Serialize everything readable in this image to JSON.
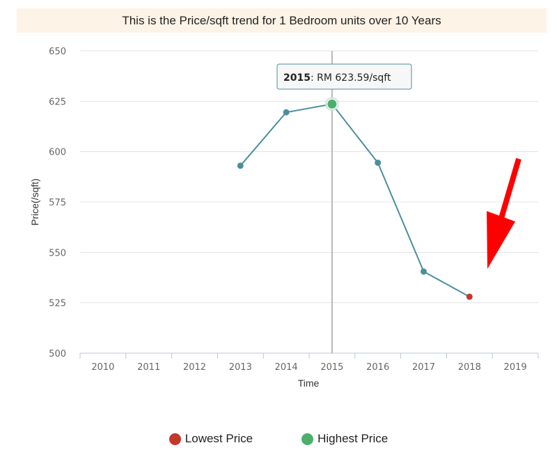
{
  "banner": {
    "text": "This is the Price/sqft trend for 1 Bedroom units over 10 Years"
  },
  "tooltip": {
    "year": "2015",
    "text": ": RM 623.59/sqft"
  },
  "legend": {
    "lowest_label": "Lowest Price",
    "highest_label": "Highest Price",
    "lowest_color": "#c0392b",
    "highest_color": "#4caf6a"
  },
  "colors": {
    "line": "#4a8f9c",
    "annotation_arrow": "#ff0000"
  },
  "chart_data": {
    "type": "line",
    "title": "This is the Price/sqft trend for 1 Bedroom units over 10 Years",
    "xlabel": "Time",
    "ylabel": "Price(/sqft)",
    "categories": [
      "2010",
      "2011",
      "2012",
      "2013",
      "2014",
      "2015",
      "2016",
      "2017",
      "2018",
      "2019"
    ],
    "y_ticks": [
      "500",
      "525",
      "550",
      "575",
      "600",
      "625",
      "650"
    ],
    "ylim": [
      500,
      650
    ],
    "grid": true,
    "series": [
      {
        "values": [
          null,
          null,
          null,
          593,
          619.5,
          623.59,
          594.5,
          540.5,
          528,
          null
        ]
      }
    ],
    "highlight": {
      "highest_year": "2015",
      "lowest_year": "2018"
    },
    "annotation": "red arrow pointing to 2018 lowest point"
  }
}
